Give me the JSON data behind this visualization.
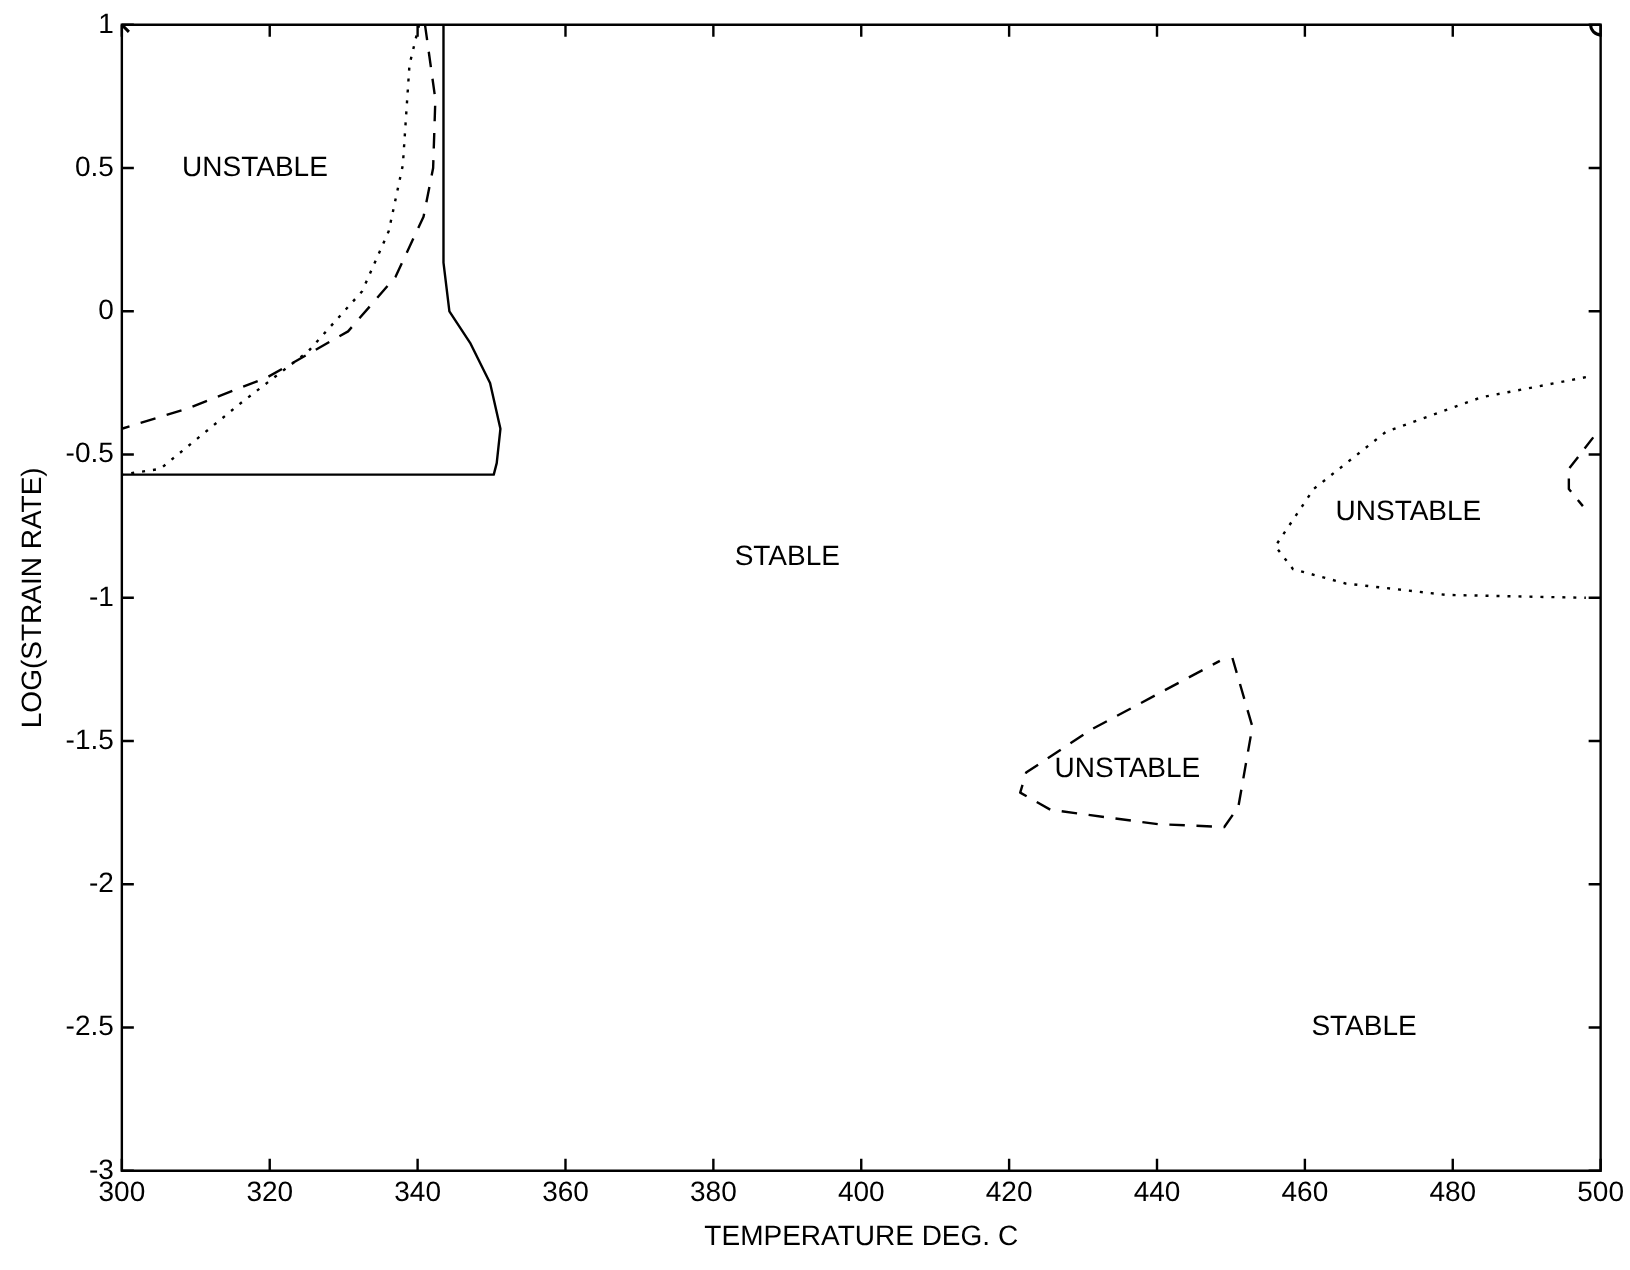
{
  "chart_data": {
    "type": "line",
    "xlabel": "TEMPERATURE DEG. C",
    "ylabel": "LOG(STRAIN RATE)",
    "xlim": [
      300,
      500
    ],
    "ylim": [
      -3,
      1
    ],
    "xticks": [
      300,
      320,
      340,
      360,
      380,
      400,
      420,
      440,
      460,
      480,
      500
    ],
    "yticks": [
      -3,
      -2.5,
      -2,
      -1.5,
      -1,
      -0.5,
      0,
      0.5,
      1
    ],
    "grid": false,
    "legend": false,
    "series": [
      {
        "color": "#000000",
        "line_style": "solid",
        "x": [
          343.5,
          343.5,
          344.3,
          347.1,
          349.8,
          351.2,
          350.7,
          350.3,
          300
        ],
        "values": [
          1,
          0.17,
          0,
          -0.11,
          -0.25,
          -0.41,
          -0.53,
          -0.57,
          -0.57
        ]
      },
      {
        "color": "#000000",
        "line_style": "dashed",
        "x": [
          341.0,
          342.4,
          342.1,
          340.8,
          337.0,
          330.6,
          319.7,
          308.8,
          300
        ],
        "values": [
          1,
          0.74,
          0.5,
          0.33,
          0.12,
          -0.07,
          -0.23,
          -0.34,
          -0.41
        ]
      },
      {
        "color": "#000000",
        "line_style": "dotted",
        "x": [
          340.2,
          338.9,
          338.0,
          336.1,
          332.5,
          325.2,
          316.1,
          305.2,
          300
        ],
        "values": [
          1,
          0.86,
          0.51,
          0.28,
          0.07,
          -0.14,
          -0.32,
          -0.55,
          -0.57
        ]
      },
      {
        "color": "#000000",
        "line_style": "dotted",
        "x": [
          498,
          483.9,
          471,
          461.2,
          456,
          458.4,
          465.5,
          479.2,
          498
        ],
        "values": [
          -0.23,
          -0.3,
          -0.42,
          -0.62,
          -0.82,
          -0.9,
          -0.95,
          -0.99,
          -1.0
        ]
      },
      {
        "color": "#000000",
        "line_style": "dashed",
        "x": [
          499,
          495.7,
          495.7,
          497.6
        ],
        "values": [
          -0.44,
          -0.55,
          -0.62,
          -0.68
        ]
      },
      {
        "color": "#000000",
        "line_style": "dashed",
        "x": [
          450.2,
          452.9,
          451,
          449.1,
          440.1,
          425.6,
          421.5,
          422.3,
          431.1,
          448.5
        ],
        "values": [
          -1.21,
          -1.45,
          -1.73,
          -1.8,
          -1.79,
          -1.74,
          -1.68,
          -1.61,
          -1.46,
          -1.22
        ]
      },
      {
        "type": "scatter",
        "marker": "cross",
        "color": "#000000",
        "x": [
          300
        ],
        "values": [
          1
        ]
      },
      {
        "type": "scatter",
        "marker": "circle",
        "color": "#000000",
        "x": [
          500
        ],
        "values": [
          1
        ]
      }
    ],
    "annotations": [
      "UNSTABLE",
      "STABLE",
      "UNSTABLE",
      "UNSTABLE",
      "STABLE"
    ]
  }
}
